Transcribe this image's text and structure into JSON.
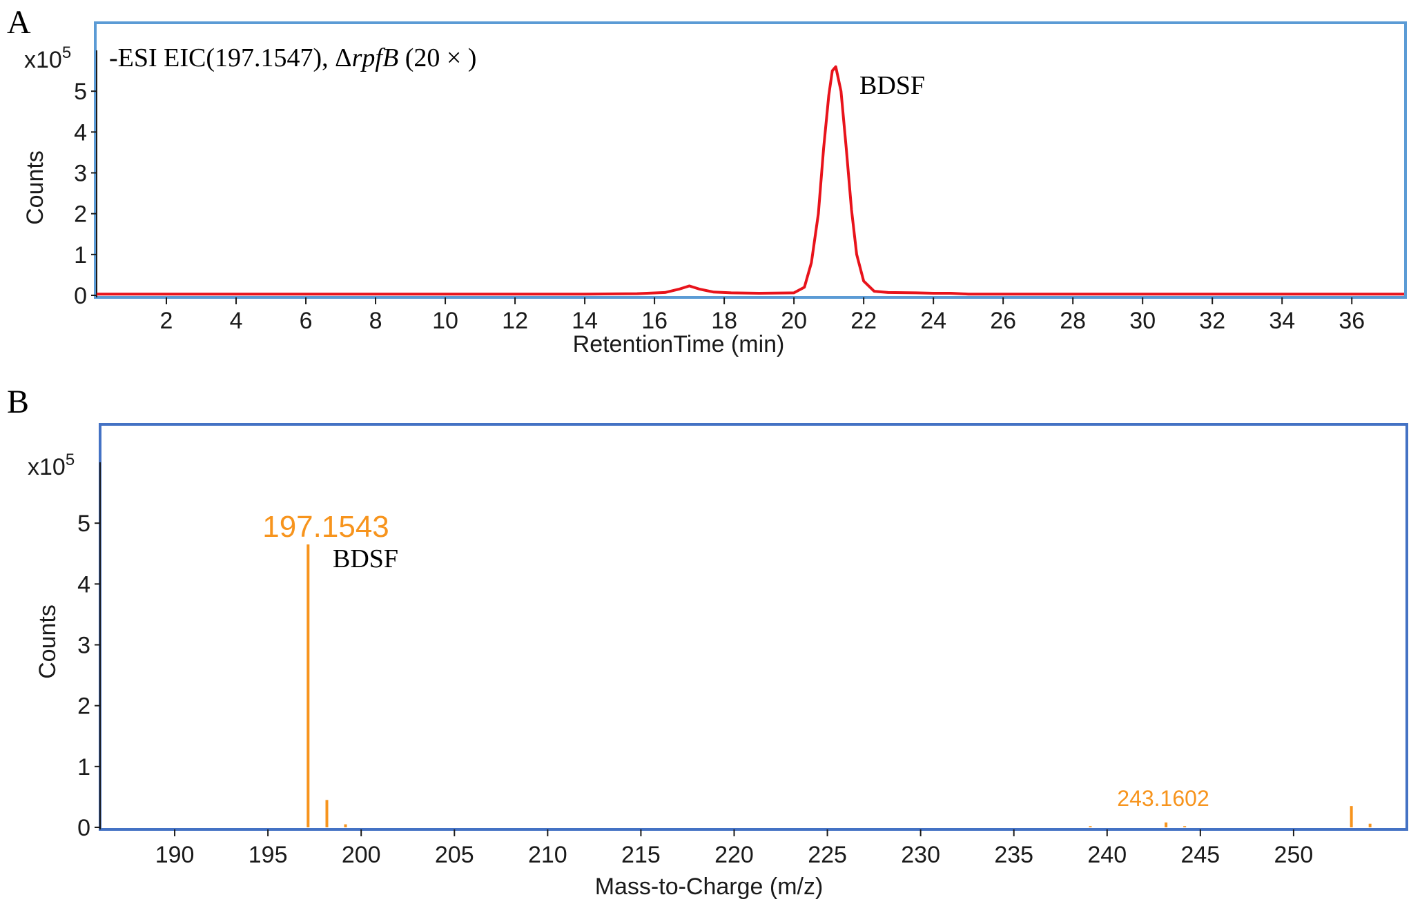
{
  "panels": {
    "a": {
      "letter": "A",
      "exponent_base": "x10",
      "exponent_power": "5",
      "title_prefix": "-ESI EIC(197.1547), Δ",
      "title_italic": "rpfB",
      "title_suffix": " (20 × )",
      "peak_annotation": "BDSF",
      "xlabel": "RetentionTime (min)",
      "ylabel": "Counts"
    },
    "b": {
      "letter": "B",
      "exponent_base": "x10",
      "exponent_power": "5",
      "main_peak_label": "197.1543",
      "main_peak_annotation": "BDSF",
      "minor_peak_label": "243.1602",
      "xlabel": "Mass-to-Charge (m/z)",
      "ylabel": "Counts"
    }
  },
  "colors": {
    "frame_a": "#5b9bd5",
    "frame_b": "#4472c4",
    "trace_a": "#e8131b",
    "spectrum_b": "#f7941d"
  },
  "chart_data": [
    {
      "type": "line",
      "title": "-ESI EIC(197.1547), ΔrpfB (20 × )",
      "xlabel": "RetentionTime (min)",
      "ylabel": "Counts",
      "y_scale_factor": "x10^5",
      "xlim": [
        0,
        37.5
      ],
      "ylim": [
        0,
        6
      ],
      "xticks": [
        2,
        4,
        6,
        8,
        10,
        12,
        14,
        16,
        18,
        20,
        22,
        24,
        26,
        28,
        30,
        32,
        34,
        36
      ],
      "yticks": [
        0,
        1,
        2,
        3,
        4,
        5
      ],
      "series": [
        {
          "x": [
            0,
            2,
            4,
            6,
            8,
            10,
            12,
            14,
            15.5,
            16.3,
            16.7,
            17.0,
            17.3,
            17.7,
            18.2,
            19.0,
            20.0,
            20.3,
            20.5,
            20.7,
            20.85,
            21.0,
            21.1,
            21.2,
            21.35,
            21.5,
            21.65,
            21.8,
            22.0,
            22.3,
            22.7,
            23.5,
            24.0,
            24.5,
            25,
            28,
            32,
            36,
            37.5
          ],
          "y": [
            0.03,
            0.03,
            0.03,
            0.03,
            0.03,
            0.03,
            0.03,
            0.03,
            0.04,
            0.07,
            0.15,
            0.23,
            0.15,
            0.08,
            0.06,
            0.05,
            0.06,
            0.2,
            0.8,
            2.0,
            3.6,
            4.9,
            5.5,
            5.6,
            5.0,
            3.6,
            2.1,
            1.0,
            0.35,
            0.1,
            0.07,
            0.06,
            0.05,
            0.05,
            0.03,
            0.03,
            0.03,
            0.03,
            0.03
          ]
        }
      ],
      "annotations": [
        {
          "text": "BDSF",
          "x": 21.2,
          "y": 5.6
        }
      ]
    },
    {
      "type": "bar",
      "subtype": "mass-spectrum",
      "xlabel": "Mass-to-Charge (m/z)",
      "ylabel": "Counts",
      "y_scale_factor": "x10^5",
      "xlim": [
        186,
        256
      ],
      "ylim": [
        0,
        6
      ],
      "xticks": [
        190,
        195,
        200,
        205,
        210,
        215,
        220,
        225,
        230,
        235,
        240,
        245,
        250
      ],
      "yticks": [
        0,
        1,
        2,
        3,
        4,
        5
      ],
      "x": [
        197.1543,
        198.16,
        199.16,
        239.1,
        243.1602,
        244.16,
        253.1,
        254.1
      ],
      "values": [
        4.65,
        0.45,
        0.05,
        0.02,
        0.08,
        0.02,
        0.35,
        0.06
      ],
      "annotations": [
        {
          "text": "197.1543",
          "x": 197.1543,
          "y": 4.65
        },
        {
          "text": "BDSF",
          "x": 197.1543,
          "y": 4.65
        },
        {
          "text": "243.1602",
          "x": 243.1602,
          "y": 0.08
        }
      ]
    }
  ]
}
